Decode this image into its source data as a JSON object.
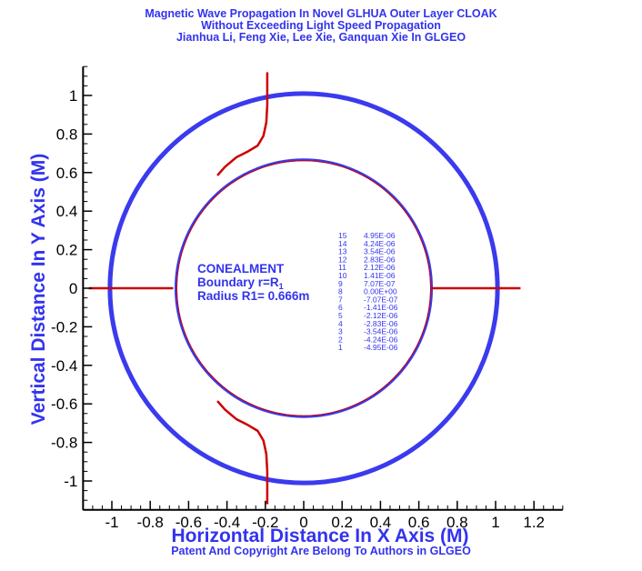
{
  "chart_data": {
    "type": "line",
    "title_lines": [
      "Magnetic Wave Propagation In Novel GLHUA Outer Layer  CLOAK",
      "Without Exceeding Light Speed Propagation",
      "Jianhua Li, Feng Xie, Lee Xie, Ganquan Xie In GLGEO"
    ],
    "xlabel": "Horizontal Distance In X Axis (M)",
    "ylabel": "Vertical Distance In Y Axis (M)",
    "footer": "Patent And Copyright Are Belong To Authors in GLGEO",
    "xlim": [
      -1.15,
      1.35
    ],
    "ylim": [
      -1.15,
      1.15
    ],
    "x_ticks": [
      -1,
      -0.8,
      -0.6,
      -0.4,
      -0.2,
      0,
      0.2,
      0.4,
      0.6,
      0.8,
      1,
      1.2
    ],
    "x_tick_labels": [
      "-1",
      "-0.8",
      "-0.6",
      "-0.4",
      "-0.2",
      "0",
      "0.2",
      "0.4",
      "0.6",
      "0.8",
      "1",
      "1.2"
    ],
    "y_ticks": [
      -1,
      -0.8,
      -0.6,
      -0.4,
      -0.2,
      0,
      0.2,
      0.4,
      0.6,
      0.8,
      1
    ],
    "y_tick_labels": [
      "-1",
      "-0.8",
      "-0.6",
      "-0.4",
      "-0.2",
      "0",
      "0.2",
      "0.4",
      "0.6",
      "0.8",
      "1"
    ],
    "annotation_lines": [
      "CONEALMENT",
      "Boundary r=R",
      "Radius R1= 0.666m"
    ],
    "annotation_subscript": "1",
    "circles": [
      {
        "name": "outer boundary",
        "radius": 1.01,
        "color": "#3a3aee"
      },
      {
        "name": "inner boundary",
        "radius": 0.666,
        "color": "#3a3aee"
      }
    ],
    "series": [
      {
        "color": "#cc0000",
        "x": [
          -0.19,
          -0.19,
          -0.195,
          -0.21,
          -0.24,
          -0.29,
          -0.35,
          -0.41,
          -0.45
        ],
        "y": [
          1.12,
          0.95,
          0.86,
          0.79,
          0.74,
          0.71,
          0.68,
          0.63,
          0.585
        ]
      },
      {
        "color": "#cc0000",
        "x": [
          -0.45,
          -0.41,
          -0.35,
          -0.29,
          -0.24,
          -0.21,
          -0.195,
          -0.19,
          -0.19
        ],
        "y": [
          -0.585,
          -0.63,
          -0.68,
          -0.71,
          -0.74,
          -0.79,
          -0.86,
          -0.95,
          -1.12
        ]
      },
      {
        "color": "#cc0000",
        "x": [
          -1.12,
          -0.68
        ],
        "y": [
          0,
          0
        ]
      },
      {
        "color": "#cc0000",
        "x": [
          0.666,
          1.13
        ],
        "y": [
          0,
          0
        ]
      }
    ],
    "legend": [
      {
        "level": "15",
        "value": "4.95E-06"
      },
      {
        "level": "14",
        "value": "4.24E-06"
      },
      {
        "level": "13",
        "value": "3.54E-06"
      },
      {
        "level": "12",
        "value": "2.83E-06"
      },
      {
        "level": "11",
        "value": "2.12E-06"
      },
      {
        "level": "10",
        "value": "1.41E-06"
      },
      {
        "level": "9",
        "value": "7.07E-07"
      },
      {
        "level": "8",
        "value": "0.00E+00"
      },
      {
        "level": "7",
        "value": "-7.07E-07"
      },
      {
        "level": "6",
        "value": "-1.41E-06"
      },
      {
        "level": "5",
        "value": "-2.12E-06"
      },
      {
        "level": "4",
        "value": "-2.83E-06"
      },
      {
        "level": "3",
        "value": "-3.54E-06"
      },
      {
        "level": "2",
        "value": "-4.24E-06"
      },
      {
        "level": "1",
        "value": "-4.95E-06"
      }
    ]
  }
}
